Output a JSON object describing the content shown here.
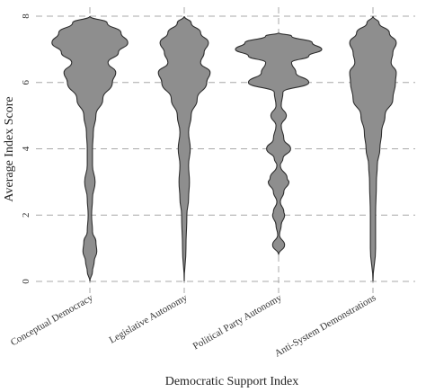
{
  "chart_data": {
    "type": "violin",
    "xlabel": "Democratic Support Index",
    "ylabel": "Average Index Score",
    "ylim": [
      0,
      8
    ],
    "yticks": [
      0,
      2,
      4,
      6,
      8
    ],
    "grid": true,
    "categories": [
      "Conceptual Democracy",
      "Legislative Autonomy",
      "Political Party Autonomy",
      "Anti-System Demonstrations"
    ],
    "series": [
      {
        "category": "Conceptual Democracy",
        "y": [
          0,
          0.3,
          0.6,
          0.9,
          1.2,
          1.5,
          2.0,
          2.5,
          3.0,
          3.5,
          4.0,
          4.5,
          5.0,
          5.5,
          6.0,
          6.3,
          6.6,
          6.9,
          7.2,
          7.5,
          7.8,
          8.0
        ],
        "density": [
          0,
          0.06,
          0.1,
          0.16,
          0.14,
          0.06,
          0.04,
          0.06,
          0.12,
          0.06,
          0.06,
          0.08,
          0.14,
          0.3,
          0.52,
          0.6,
          0.42,
          0.66,
          0.88,
          0.72,
          0.4,
          0
        ]
      },
      {
        "category": "Legislative Autonomy",
        "y": [
          0,
          1.0,
          2.0,
          2.5,
          3.0,
          3.5,
          4.0,
          4.5,
          5.0,
          5.5,
          6.0,
          6.3,
          6.6,
          6.9,
          7.2,
          7.5,
          7.8,
          8.0
        ],
        "density": [
          0,
          0.04,
          0.06,
          0.1,
          0.12,
          0.1,
          0.14,
          0.1,
          0.16,
          0.3,
          0.52,
          0.6,
          0.38,
          0.46,
          0.56,
          0.38,
          0.16,
          0
        ]
      },
      {
        "category": "Political Party Autonomy",
        "y": [
          0.8,
          1.1,
          1.4,
          1.7,
          2.0,
          2.1,
          2.4,
          2.7,
          3.0,
          3.1,
          3.5,
          3.7,
          4.0,
          4.3,
          4.7,
          5.0,
          5.3,
          5.7,
          6.0,
          6.3,
          6.6,
          6.8,
          7.0,
          7.2,
          7.4,
          7.5
        ],
        "density": [
          0,
          0.14,
          0.02,
          0.06,
          0.14,
          0.12,
          0.04,
          0.12,
          0.24,
          0.2,
          0.04,
          0.1,
          0.28,
          0.12,
          0.06,
          0.18,
          0.06,
          0.1,
          0.7,
          0.4,
          0.3,
          0.7,
          1.0,
          0.78,
          0.3,
          0
        ]
      },
      {
        "category": "Anti-System Demonstrations",
        "y": [
          0,
          1.0,
          2.0,
          3.0,
          3.5,
          4.0,
          4.5,
          5.0,
          5.5,
          6.0,
          6.3,
          6.6,
          6.9,
          7.2,
          7.5,
          7.8,
          8.0
        ],
        "density": [
          0,
          0.06,
          0.06,
          0.08,
          0.1,
          0.16,
          0.2,
          0.28,
          0.46,
          0.52,
          0.54,
          0.42,
          0.46,
          0.54,
          0.38,
          0.14,
          0
        ]
      }
    ]
  }
}
